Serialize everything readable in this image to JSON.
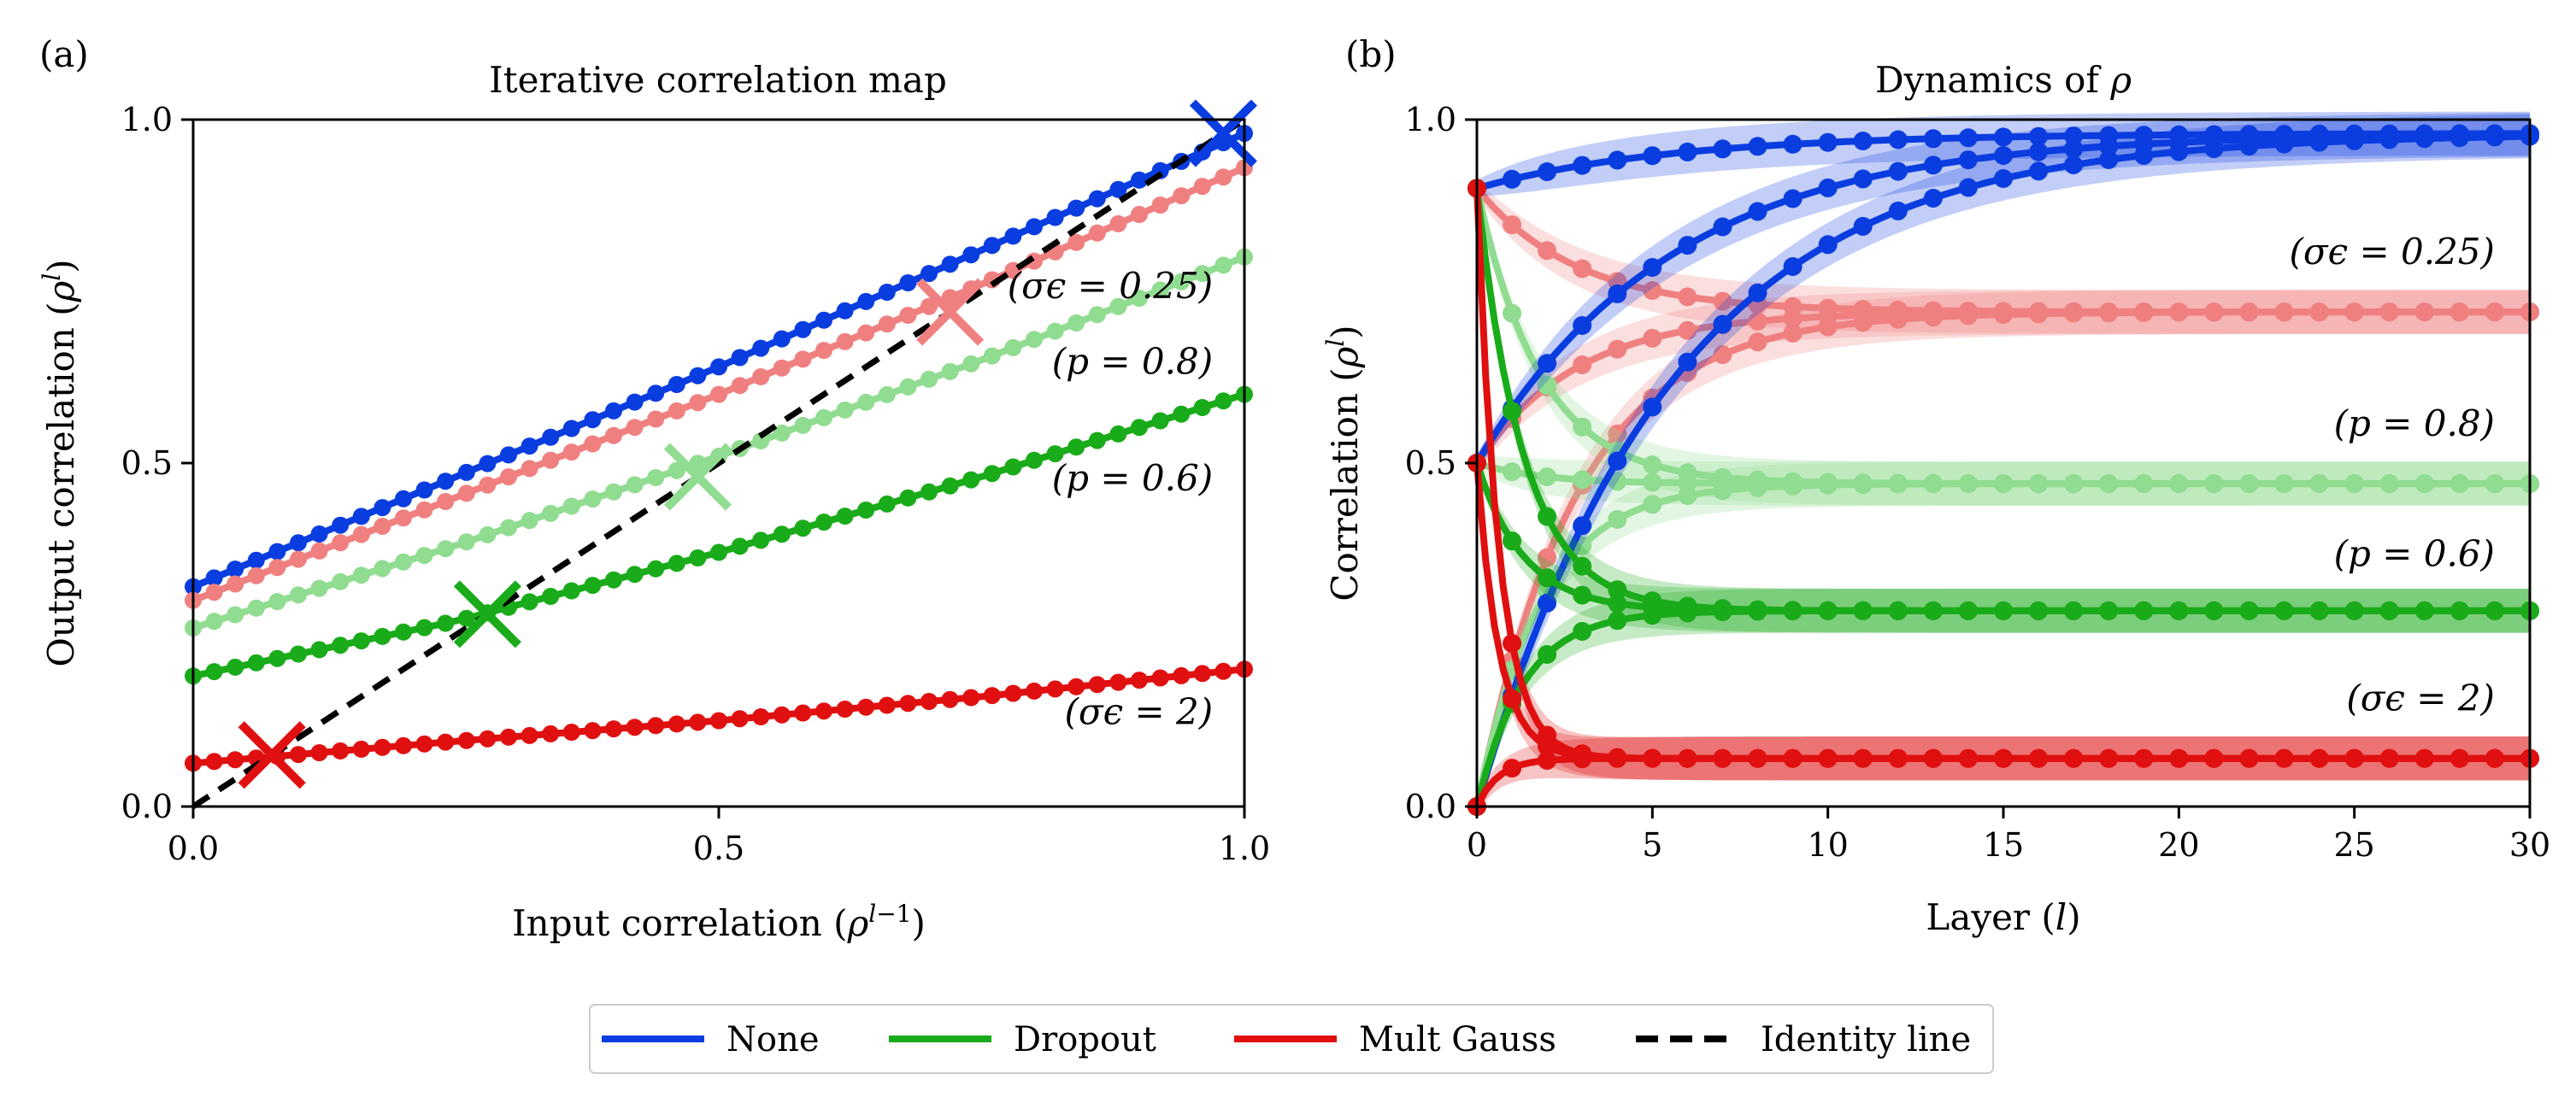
{
  "legend": {
    "entries": [
      {
        "label": "None",
        "color": "#0a3de0",
        "dash": "solid"
      },
      {
        "label": "Dropout",
        "color": "#1aab1a",
        "dash": "solid"
      },
      {
        "label": "Mult Gauss",
        "color": "#e01010",
        "dash": "solid"
      },
      {
        "label": "Identity line",
        "color": "#000000",
        "dash": "dashed"
      }
    ]
  },
  "chart_data": [
    {
      "panel": "(a)",
      "type": "line",
      "title": "Iterative correlation map",
      "xlabel": "Input correlation (ρ^{l−1})",
      "ylabel": "Output correlation (ρ^l)",
      "xlim": [
        0.0,
        1.0
      ],
      "ylim": [
        0.0,
        1.0
      ],
      "xticks": [
        "0.0",
        "0.5",
        "1.0"
      ],
      "yticks": [
        "0.0",
        "0.5",
        "1.0"
      ],
      "series": [
        {
          "key": "none",
          "color": "#0a3de0",
          "x0": 0.0,
          "x1": 1.0,
          "y_at": [
            [
              0.0,
              0.32
            ],
            [
              0.25,
              0.48
            ],
            [
              0.5,
              0.64
            ],
            [
              0.75,
              0.81
            ],
            [
              1.0,
              0.98
            ]
          ],
          "fixed_point": [
            0.98,
            0.98
          ]
        },
        {
          "key": "sigma025",
          "color": "#f08080",
          "x0": 0.0,
          "x1": 1.0,
          "y_at": [
            [
              0.0,
              0.3
            ],
            [
              0.25,
              0.45
            ],
            [
              0.5,
              0.6
            ],
            [
              0.75,
              0.76
            ],
            [
              1.0,
              0.93
            ]
          ],
          "fixed_point": [
            0.72,
            0.72
          ]
        },
        {
          "key": "p08",
          "color": "#90dc90",
          "x0": 0.0,
          "x1": 1.0,
          "y_at": [
            [
              0.0,
              0.26
            ],
            [
              0.25,
              0.38
            ],
            [
              0.5,
              0.51
            ],
            [
              0.75,
              0.65
            ],
            [
              1.0,
              0.8
            ]
          ],
          "fixed_point": [
            0.48,
            0.48
          ]
        },
        {
          "key": "p06",
          "color": "#1aab1a",
          "x0": 0.0,
          "x1": 1.0,
          "y_at": [
            [
              0.0,
              0.19
            ],
            [
              0.25,
              0.27
            ],
            [
              0.5,
              0.37
            ],
            [
              0.75,
              0.48
            ],
            [
              1.0,
              0.6
            ]
          ],
          "fixed_point": [
            0.28,
            0.28
          ]
        },
        {
          "key": "sigma2",
          "color": "#e01010",
          "x0": 0.0,
          "x1": 1.0,
          "y_at": [
            [
              0.0,
              0.063
            ],
            [
              0.25,
              0.095
            ],
            [
              0.5,
              0.125
            ],
            [
              0.75,
              0.16
            ],
            [
              1.0,
              0.2
            ]
          ],
          "fixed_point": [
            0.075,
            0.075
          ]
        }
      ],
      "identity_line": {
        "from": [
          0.0,
          0.0
        ],
        "to": [
          1.0,
          1.0
        ],
        "color": "#000000"
      },
      "annotations": [
        {
          "text": "(σϵ = 0.25)",
          "x": 0.97,
          "y": 0.74
        },
        {
          "text": "(p = 0.8)",
          "x": 0.97,
          "y": 0.63
        },
        {
          "text": "(p = 0.6)",
          "x": 0.97,
          "y": 0.46
        },
        {
          "text": "(σϵ = 2)",
          "x": 0.97,
          "y": 0.12
        }
      ]
    },
    {
      "panel": "(b)",
      "type": "line",
      "title": "Dynamics of ρ",
      "xlabel": "Layer (l)",
      "ylabel": "Correlation (ρ^l)",
      "xlim": [
        0,
        30
      ],
      "ylim": [
        0.0,
        1.0
      ],
      "xticks": [
        "0",
        "5",
        "10",
        "15",
        "20",
        "25",
        "30"
      ],
      "yticks": [
        "0.0",
        "0.5",
        "1.0"
      ],
      "series": [
        {
          "key": "none",
          "color": "#0a3de0",
          "starts": [
            0.9,
            0.5,
            0.0
          ],
          "limit": 0.98,
          "rate": 0.18
        },
        {
          "key": "sigma025",
          "color": "#f08080",
          "starts": [
            0.9,
            0.5,
            0.0
          ],
          "limit": 0.72,
          "rate": 0.35
        },
        {
          "key": "p08",
          "color": "#90dc90",
          "starts": [
            0.9,
            0.5,
            0.0
          ],
          "limit": 0.47,
          "rate": 0.55
        },
        {
          "key": "p06",
          "color": "#1aab1a",
          "starts": [
            0.9,
            0.5,
            0.0
          ],
          "limit": 0.285,
          "rate": 0.75
        },
        {
          "key": "sigma2",
          "color": "#e01010",
          "starts": [
            0.9,
            0.5,
            0.0
          ],
          "limit": 0.07,
          "rate": 1.6
        }
      ],
      "annotations": [
        {
          "text": "(σϵ = 0.25)",
          "x": 29.0,
          "y": 0.79
        },
        {
          "text": "(p = 0.8)",
          "x": 29.0,
          "y": 0.54
        },
        {
          "text": "(p = 0.6)",
          "x": 29.0,
          "y": 0.35
        },
        {
          "text": "(σϵ = 2)",
          "x": 29.0,
          "y": 0.14
        }
      ]
    }
  ]
}
